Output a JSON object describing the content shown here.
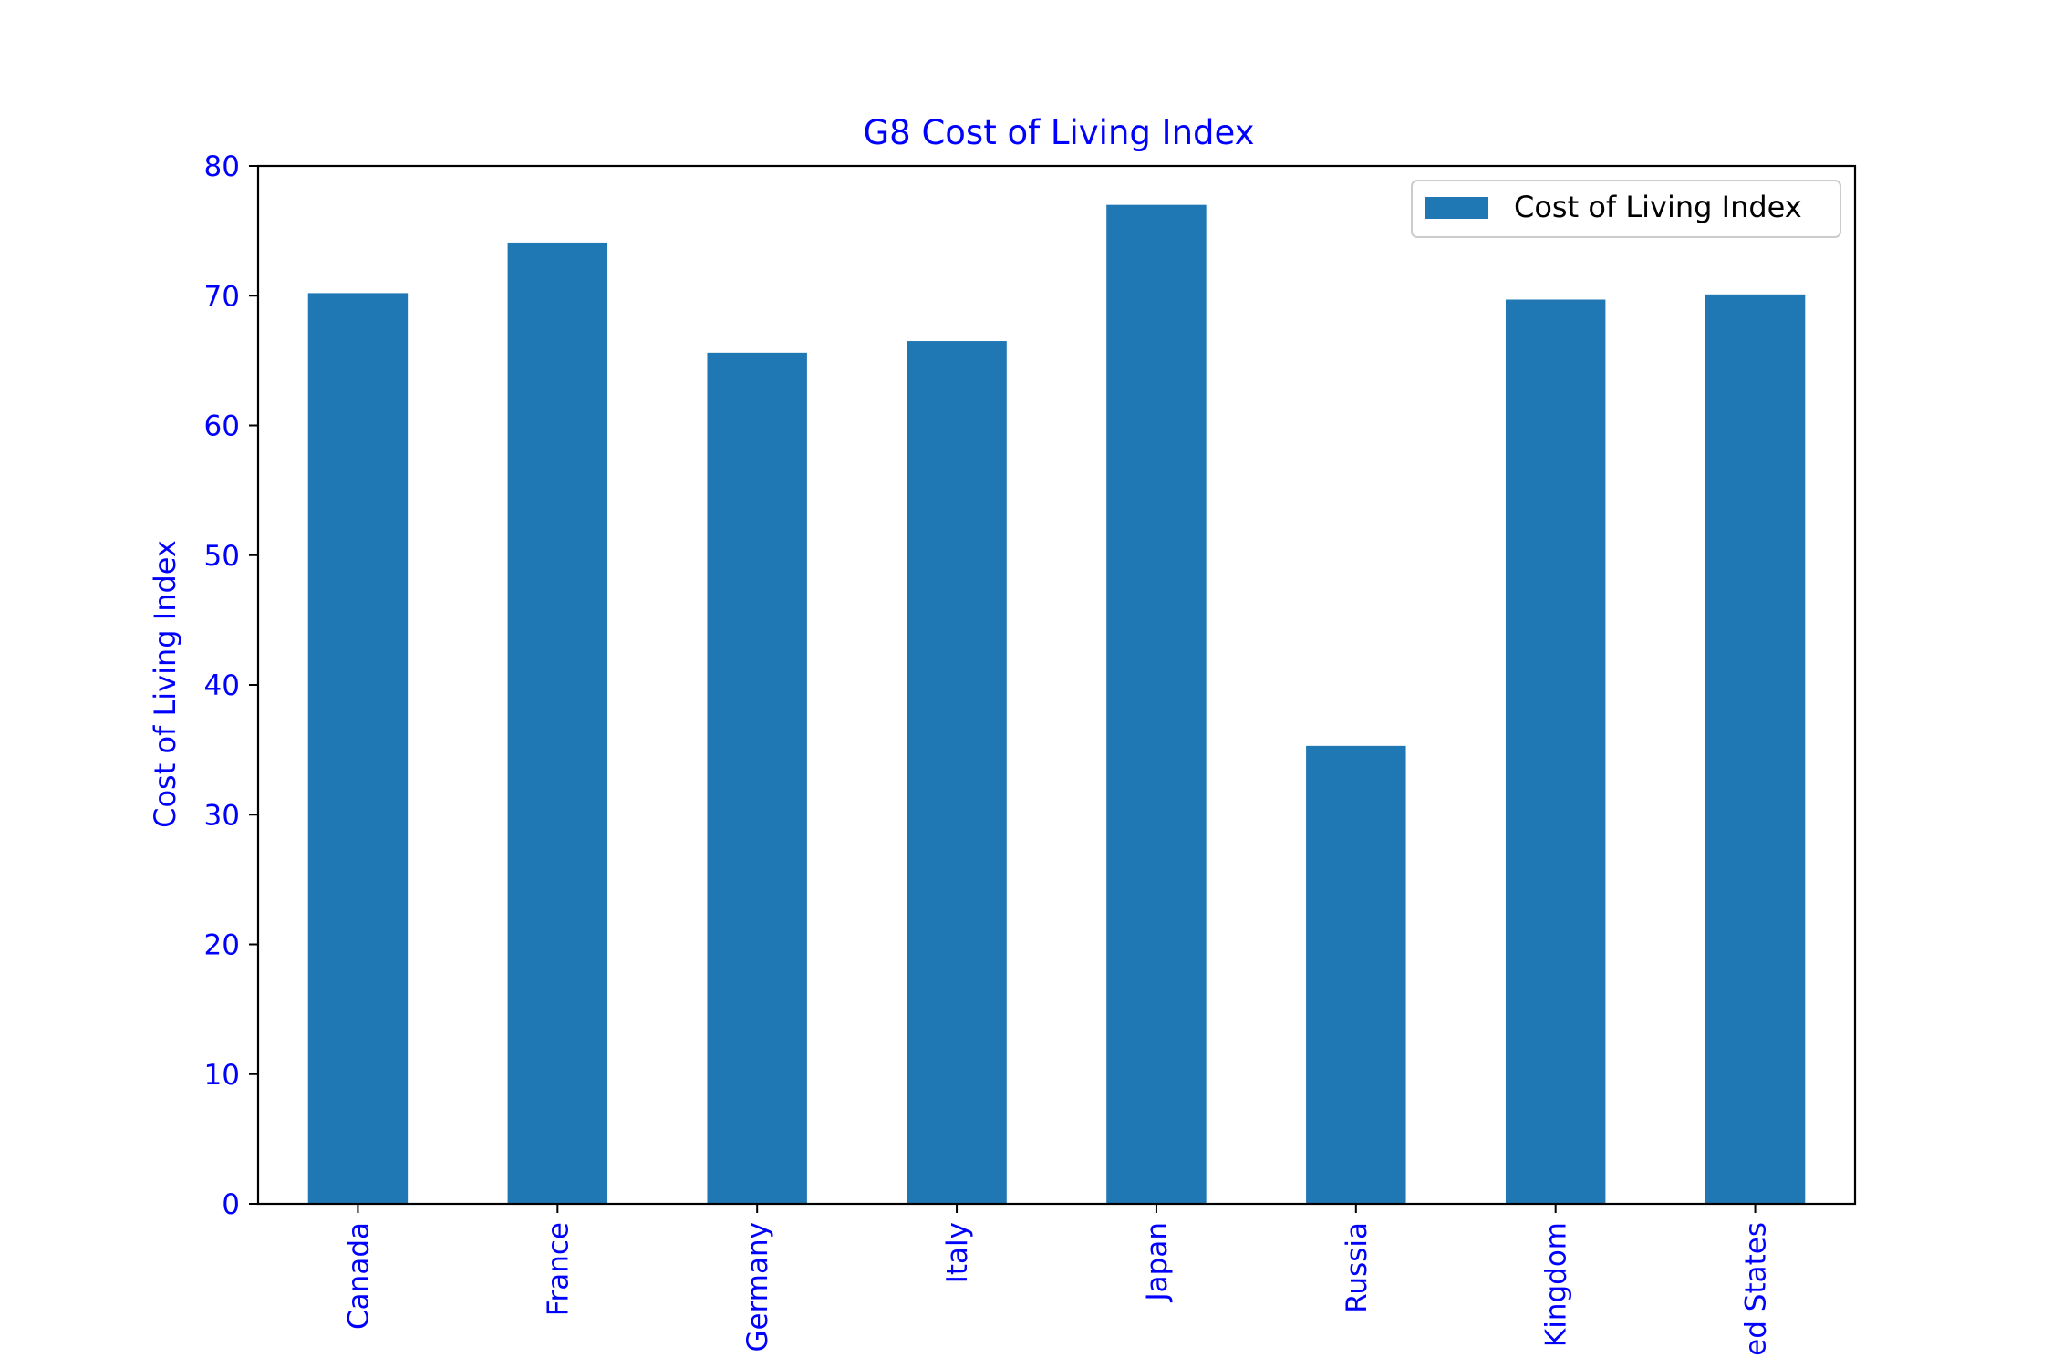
{
  "chart_data": {
    "type": "bar",
    "title": "G8 Cost of Living Index",
    "xlabel": "",
    "ylabel": "Cost of Living Index",
    "categories": [
      "Canada",
      "France",
      "Germany",
      "Italy",
      "Japan",
      "Russia",
      "Kingdom",
      "ed States"
    ],
    "series": [
      {
        "name": "Cost of Living Index",
        "values": [
          70.2,
          74.1,
          65.6,
          66.5,
          77.0,
          35.3,
          69.7,
          70.1
        ]
      }
    ],
    "ylim": [
      0,
      80
    ],
    "yticks": [
      "0",
      "10",
      "20",
      "30",
      "40",
      "50",
      "60",
      "70",
      "80"
    ],
    "grid": false,
    "legend_position": "top-right",
    "colors": {
      "bar": "#1f77b4",
      "text": "#0000ff",
      "axes": "#000000"
    }
  }
}
